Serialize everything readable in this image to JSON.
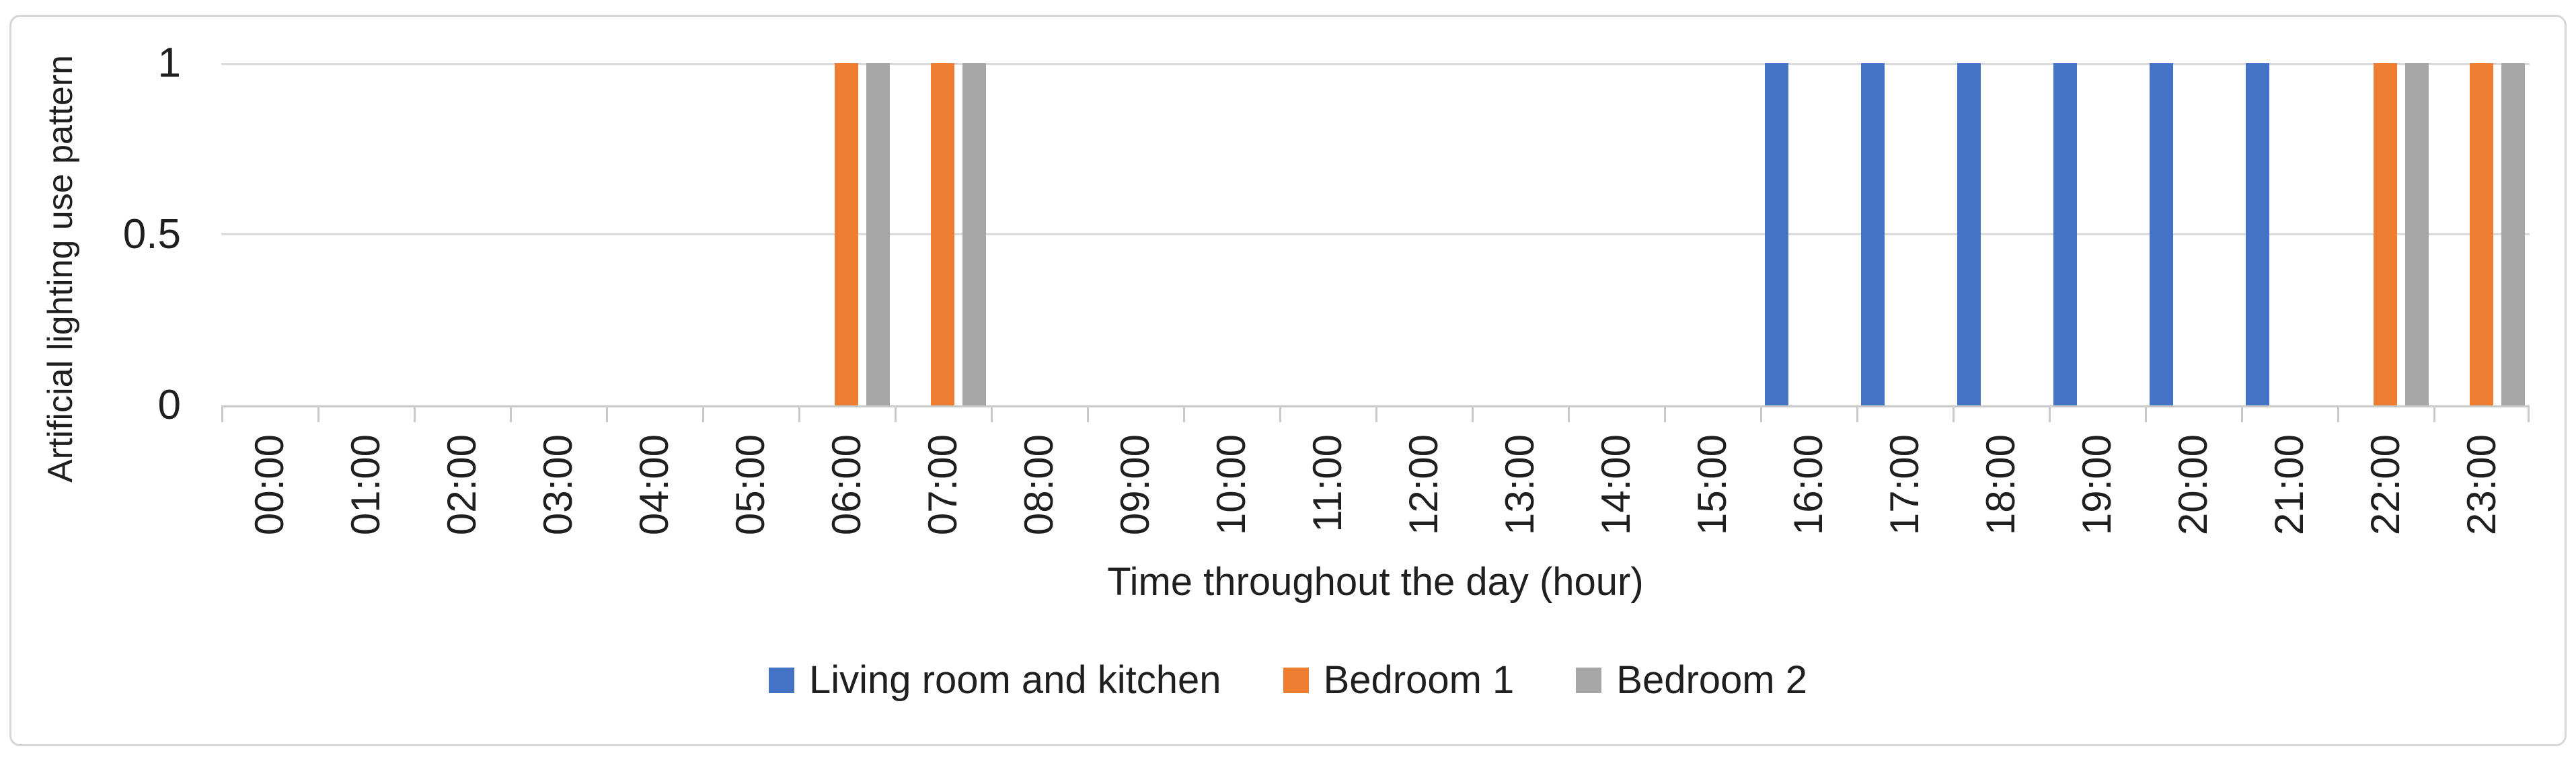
{
  "y_axis": {
    "title": "Artificial lighting use pattern",
    "tick_labels": [
      "1",
      "0.5",
      "0"
    ]
  },
  "x_axis": {
    "title": "Time throughout the day (hour)"
  },
  "chart_data": {
    "type": "bar",
    "title": "",
    "xlabel": "Time throughout the day (hour)",
    "ylabel": "Artificial lighting use pattern",
    "ylim": [
      0,
      1
    ],
    "y_ticks": [
      0,
      0.5,
      1
    ],
    "grid": true,
    "legend_position": "bottom",
    "categories": [
      "00:00",
      "01:00",
      "02:00",
      "03:00",
      "04:00",
      "05:00",
      "06:00",
      "07:00",
      "08:00",
      "09:00",
      "10:00",
      "11:00",
      "12:00",
      "13:00",
      "14:00",
      "15:00",
      "16:00",
      "17:00",
      "18:00",
      "19:00",
      "20:00",
      "21:00",
      "22:00",
      "23:00"
    ],
    "series": [
      {
        "name": "Living room and kitchen",
        "color": "#4472C4",
        "values": [
          0,
          0,
          0,
          0,
          0,
          0,
          0,
          0,
          0,
          0,
          0,
          0,
          0,
          0,
          0,
          0,
          1,
          1,
          1,
          1,
          1,
          1,
          0,
          0
        ]
      },
      {
        "name": "Bedroom 1",
        "color": "#ED7D31",
        "values": [
          0,
          0,
          0,
          0,
          0,
          0,
          1,
          1,
          0,
          0,
          0,
          0,
          0,
          0,
          0,
          0,
          0,
          0,
          0,
          0,
          0,
          0,
          1,
          1
        ]
      },
      {
        "name": "Bedroom 2",
        "color": "#A6A6A6",
        "values": [
          0,
          0,
          0,
          0,
          0,
          0,
          1,
          1,
          0,
          0,
          0,
          0,
          0,
          0,
          0,
          0,
          0,
          0,
          0,
          0,
          0,
          0,
          1,
          1
        ]
      }
    ]
  }
}
